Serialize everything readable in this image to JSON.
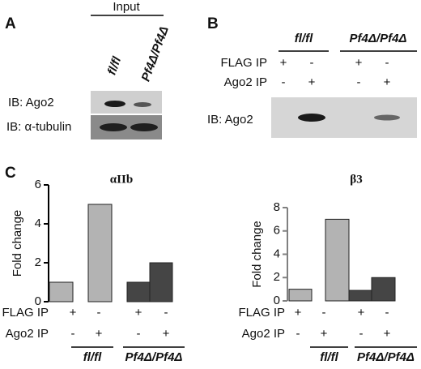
{
  "panel_a": {
    "label": "A",
    "input_label": "Input",
    "lanes": [
      "fl/fl",
      "Pf4Δ/Pf4Δ"
    ],
    "rows": [
      "IB: Ago2",
      "IB: α-tubulin"
    ]
  },
  "panel_b": {
    "label": "B",
    "groups": [
      "fl/fl",
      "Pf4Δ/Pf4Δ"
    ],
    "conditions": [
      {
        "label": "FLAG IP",
        "marks": [
          "+",
          "-",
          "+",
          "-"
        ]
      },
      {
        "label": "Ago2 IP",
        "marks": [
          "-",
          "+",
          "-",
          "+"
        ]
      }
    ],
    "row": "IB: Ago2"
  },
  "panel_c": {
    "label": "C"
  },
  "chart_data": [
    {
      "type": "bar",
      "title": "αIIb",
      "y_label": "Fold change",
      "categories": [
        null,
        null,
        null,
        null
      ],
      "values": [
        1,
        5,
        1,
        2
      ],
      "colors": [
        "#b3b3b3",
        "#b3b3b3",
        "#454545",
        "#454545"
      ],
      "axis_color": "#000000",
      "ylim": [
        0,
        6
      ],
      "yticks": [
        0,
        2,
        4,
        6
      ],
      "conditions": [
        {
          "label": "FLAG IP",
          "marks": [
            "+",
            "-",
            "+",
            "-"
          ]
        },
        {
          "label": "Ago2 IP",
          "marks": [
            "-",
            "+",
            "-",
            "+"
          ]
        }
      ],
      "groups": [
        "fl/fl",
        "Pf4Δ/Pf4Δ"
      ]
    },
    {
      "type": "bar",
      "title": "β3",
      "y_label": "Fold change",
      "categories": [
        null,
        null,
        null,
        null
      ],
      "values": [
        1,
        7,
        0.9,
        2
      ],
      "colors": [
        "#b3b3b3",
        "#b3b3b3",
        "#454545",
        "#454545"
      ],
      "axis_color": "#808080",
      "ylim": [
        0,
        8
      ],
      "yticks": [
        0,
        2,
        4,
        6,
        8
      ],
      "conditions": [
        {
          "label": "FLAG IP",
          "marks": [
            "+",
            "-",
            "+",
            "-"
          ]
        },
        {
          "label": "Ago2 IP",
          "marks": [
            "-",
            "+",
            "-",
            "+"
          ]
        }
      ],
      "groups": [
        "fl/fl",
        "Pf4Δ/Pf4Δ"
      ]
    }
  ]
}
